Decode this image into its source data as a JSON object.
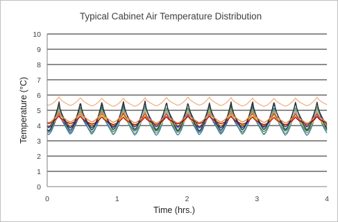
{
  "chart_data": {
    "type": "line",
    "title": "Typical Cabinet Air Temperature Distribution",
    "xlabel": "Time (hrs.)",
    "ylabel": "Temperature (°C)",
    "xlim": [
      0,
      4
    ],
    "ylim": [
      0,
      10
    ],
    "x_ticks": [
      "0",
      "1",
      "2",
      "3",
      "4"
    ],
    "y_ticks": [
      "0",
      "1",
      "2",
      "3",
      "4",
      "5",
      "6",
      "7",
      "8",
      "9",
      "10"
    ],
    "grid": "horizontal",
    "cycle_period_hrs": 0.3077,
    "peak_times_hrs": [
      0.17,
      0.48,
      0.79,
      1.09,
      1.4,
      1.71,
      2.02,
      2.32,
      2.63,
      2.94,
      3.25,
      3.55,
      3.86
    ],
    "series": [
      {
        "color": "#4472C4",
        "min": 3.4,
        "max": 5.3
      },
      {
        "color": "#6FAF3C",
        "min": 3.5,
        "max": 5.2
      },
      {
        "color": "#2E75B6",
        "min": 3.6,
        "max": 5.0
      },
      {
        "color": "#70AD47",
        "min": 3.7,
        "max": 5.1
      },
      {
        "color": "#A9D18E",
        "min": 3.8,
        "max": 4.9
      },
      {
        "color": "#9DC3E6",
        "min": 3.8,
        "max": 5.0
      },
      {
        "color": "#7030A0",
        "min": 3.9,
        "max": 4.8
      },
      {
        "color": "#FFC000",
        "min": 4.0,
        "max": 4.7
      },
      {
        "color": "#C00000",
        "min": 4.1,
        "max": 4.6
      },
      {
        "color": "#264478",
        "min": 3.9,
        "max": 5.5
      },
      {
        "color": "#2F2F2F",
        "min": 3.7,
        "max": 5.6
      },
      {
        "color": "#ED7D31",
        "min": 4.2,
        "max": 4.9
      },
      {
        "color": "#F4B183",
        "min": 5.3,
        "max": 5.85
      }
    ]
  }
}
